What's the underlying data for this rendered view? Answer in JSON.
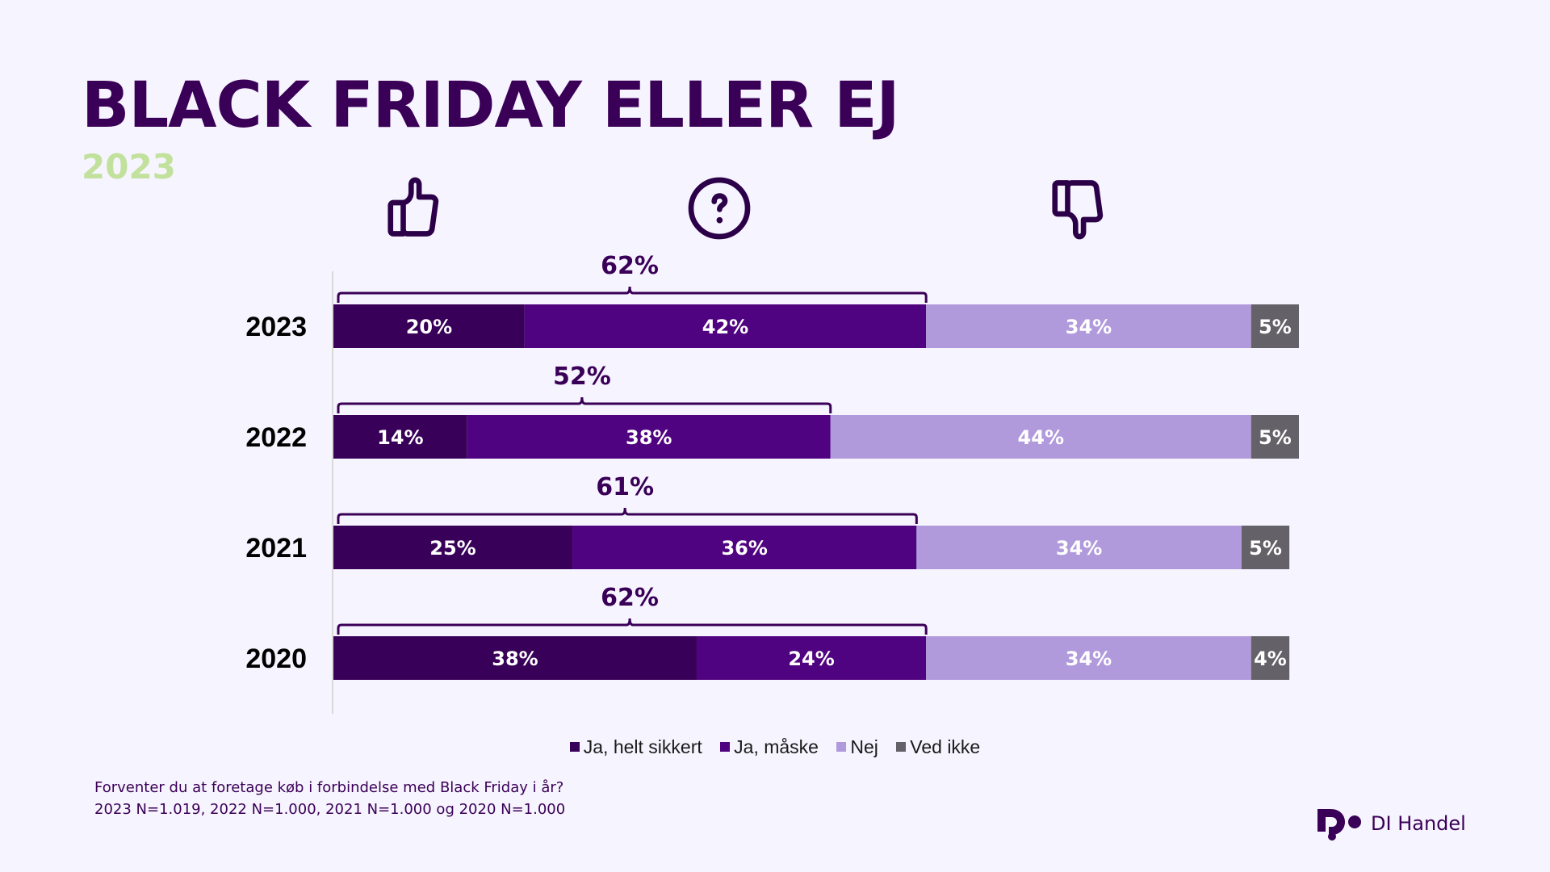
{
  "header": {
    "title": "BLACK FRIDAY ELLER EJ",
    "subtitle": "2023"
  },
  "icons": {
    "positive": "thumbs-up-icon",
    "uncertain": "question-circle-icon",
    "negative": "thumbs-down-icon"
  },
  "colors": {
    "text_dark": "#3a0057",
    "subtitle_green": "#c1e19d",
    "background": "#f6f4fe",
    "axis": "#d9d9d9"
  },
  "chart_data": {
    "type": "bar",
    "orientation": "horizontal",
    "stacked": true,
    "title": "BLACK FRIDAY ELLER EJ",
    "subtitle": "2023",
    "categories": [
      "2023",
      "2022",
      "2021",
      "2020"
    ],
    "series": [
      {
        "name": "Ja, helt sikkert",
        "color": "#380058",
        "values": [
          20,
          14,
          25,
          38
        ]
      },
      {
        "name": "Ja, måske",
        "color": "#500380",
        "values": [
          42,
          38,
          36,
          24
        ]
      },
      {
        "name": "Nej",
        "color": "#b09adc",
        "values": [
          34,
          44,
          34,
          34
        ]
      },
      {
        "name": "Ved ikke",
        "color": "#646268",
        "values": [
          5,
          5,
          5,
          4
        ]
      }
    ],
    "data_labels": [
      [
        "20%",
        "42%",
        "34%",
        "5%"
      ],
      [
        "14%",
        "38%",
        "44%",
        "5%"
      ],
      [
        "25%",
        "36%",
        "34%",
        "5%"
      ],
      [
        "38%",
        "24%",
        "34%",
        "4%"
      ]
    ],
    "bracket_totals": {
      "description": "Ja, helt sikkert + Ja, måske",
      "values": [
        62,
        52,
        61,
        62
      ],
      "labels": [
        "62%",
        "52%",
        "61%",
        "62%"
      ]
    },
    "xlabel": "",
    "ylabel": "",
    "xlim": [
      0,
      101
    ],
    "grid": false,
    "legend_position": "bottom"
  },
  "legend": {
    "items": [
      {
        "label": "Ja, helt sikkert",
        "color": "#380058"
      },
      {
        "label": "Ja, måske",
        "color": "#500380"
      },
      {
        "label": "Nej",
        "color": "#b09adc"
      },
      {
        "label": "Ved ikke",
        "color": "#646268"
      }
    ]
  },
  "footnote": {
    "question": "Forventer du at foretage køb i forbindelse med Black Friday i år?",
    "sample": "2023 N=1.019, 2022 N=1.000, 2021 N=1.000 og 2020 N=1.000"
  },
  "logo": {
    "text": "DI Handel"
  }
}
